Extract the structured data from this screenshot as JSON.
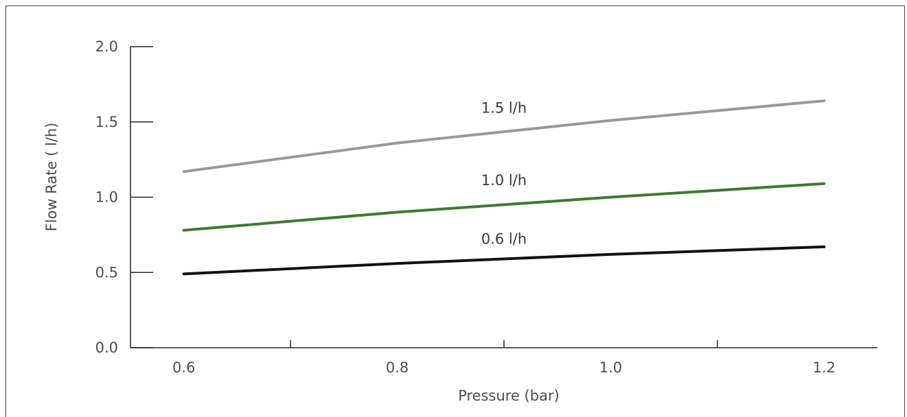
{
  "chart_data": {
    "type": "line",
    "title": "",
    "xlabel": "Pressure (bar)",
    "ylabel": "Flow Rate ( l/h)",
    "xlim": [
      0.55,
      1.25
    ],
    "ylim": [
      0.0,
      2.0
    ],
    "x_ticks": [
      {
        "value": 0.6,
        "label": "0.6"
      },
      {
        "value": 0.8,
        "label": "0.8"
      },
      {
        "value": 1.0,
        "label": "1.0"
      },
      {
        "value": 1.2,
        "label": "1.2"
      }
    ],
    "x_minor_ticks": [
      0.7,
      0.9,
      1.1
    ],
    "y_ticks": [
      {
        "value": 0.0,
        "label": "0.0"
      },
      {
        "value": 0.5,
        "label": "0.5"
      },
      {
        "value": 1.0,
        "label": "1.0"
      },
      {
        "value": 1.5,
        "label": "1.5"
      },
      {
        "value": 2.0,
        "label": "2.0"
      }
    ],
    "grid": false,
    "series": [
      {
        "name": "1.5 l/h",
        "color": "#999999",
        "x": [
          0.6,
          0.8,
          1.0,
          1.2
        ],
        "y": [
          1.17,
          1.36,
          1.51,
          1.64
        ]
      },
      {
        "name": "1.0 l/h",
        "color": "#3d7a2e",
        "x": [
          0.6,
          0.8,
          1.0,
          1.2
        ],
        "y": [
          0.78,
          0.9,
          1.0,
          1.09
        ]
      },
      {
        "name": "0.6 l/h",
        "color": "#111111",
        "x": [
          0.6,
          0.8,
          1.0,
          1.2
        ],
        "y": [
          0.49,
          0.56,
          0.62,
          0.67
        ]
      }
    ],
    "annotations": [
      {
        "text": "1.5 l/h",
        "x": 0.9,
        "y": 1.56
      },
      {
        "text": "1.0 l/h",
        "x": 0.9,
        "y": 1.08
      },
      {
        "text": "0.6 l/h",
        "x": 0.9,
        "y": 0.69
      }
    ]
  }
}
